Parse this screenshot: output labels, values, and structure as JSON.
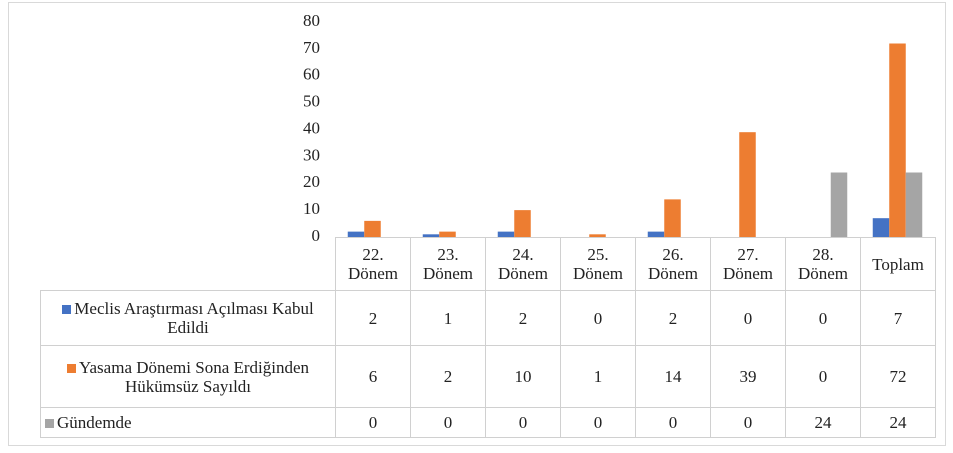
{
  "chart_data": {
    "type": "bar",
    "categories": [
      "22. Dönem",
      "23. Dönem",
      "24. Dönem",
      "25. Dönem",
      "26. Dönem",
      "27. Dönem",
      "28. Dönem",
      "Toplam"
    ],
    "series": [
      {
        "name": "Meclis Araştırması Açılması Kabul Edildi",
        "color": "#4472c4",
        "values": [
          2,
          1,
          2,
          0,
          2,
          0,
          0,
          7
        ]
      },
      {
        "name": "Yasama Dönemi Sona Erdiğinden Hükümsüz Sayıldı",
        "color": "#ed7d31",
        "values": [
          6,
          2,
          10,
          1,
          14,
          39,
          0,
          72
        ]
      },
      {
        "name": "Gündemde",
        "color": "#a5a5a5",
        "values": [
          0,
          0,
          0,
          0,
          0,
          0,
          24,
          24
        ]
      }
    ],
    "ylim": [
      0,
      80
    ],
    "yticks": [
      0,
      10,
      20,
      30,
      40,
      50,
      60,
      70,
      80
    ],
    "grid": false,
    "data_table": true
  }
}
